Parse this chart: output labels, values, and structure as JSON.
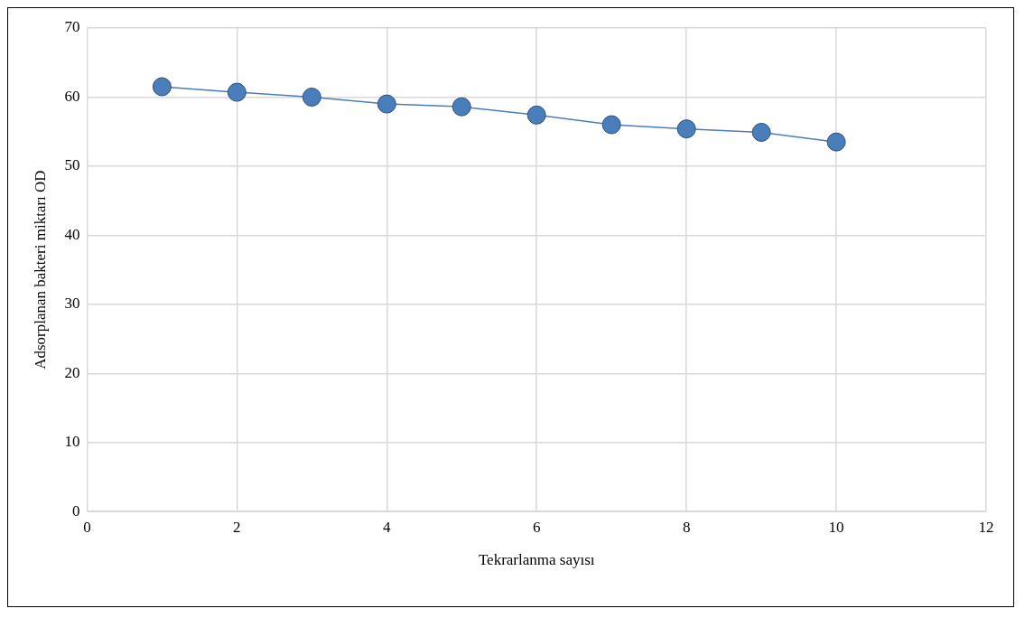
{
  "chart_data": {
    "type": "line",
    "xlabel": "Tekrarlanma sayısı",
    "ylabel": "Adsorplanan bakteri miktarı OD",
    "x": [
      1,
      2,
      3,
      4,
      5,
      6,
      7,
      8,
      9,
      10
    ],
    "series": [
      {
        "color": "#4a7ebb",
        "values": [
          61.5,
          60.7,
          60.0,
          59.0,
          58.6,
          57.4,
          56.0,
          55.4,
          54.9,
          53.5
        ]
      }
    ],
    "xlim": [
      0,
      12
    ],
    "xticks": [
      0,
      2,
      4,
      6,
      8,
      10,
      12
    ],
    "ylim": [
      0,
      70
    ],
    "yticks": [
      0,
      10,
      20,
      30,
      40,
      50,
      60,
      70
    ],
    "grid": true,
    "legend": false,
    "marker": "circle",
    "line_style": "solid"
  }
}
